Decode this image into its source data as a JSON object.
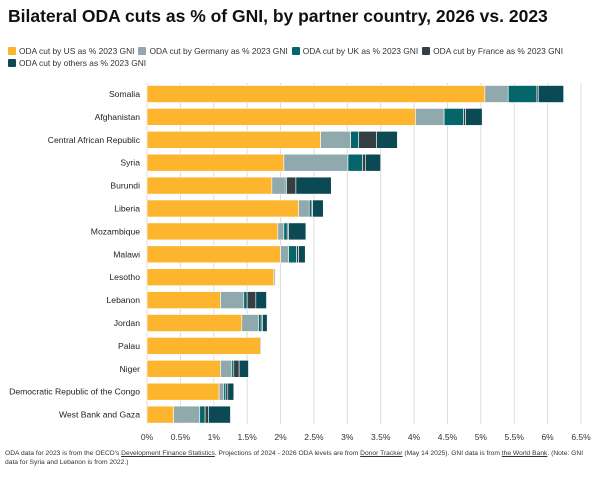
{
  "chart_data": {
    "type": "bar",
    "orientation": "horizontal",
    "stacked": true,
    "title": "Bilateral ODA cuts as % of GNI, by partner country, 2026 vs. 2023",
    "xlim": [
      0,
      6.5
    ],
    "xticks": [
      0,
      0.5,
      1,
      1.5,
      2,
      2.5,
      3,
      3.5,
      4,
      4.5,
      5,
      5.5,
      6,
      6.5
    ],
    "xtick_labels": [
      "0%",
      "0.5%",
      "1%",
      "1.5%",
      "2%",
      "2.5%",
      "3%",
      "3.5%",
      "4%",
      "4.5%",
      "5%",
      "5.5%",
      "6%",
      "6.5%"
    ],
    "grid": true,
    "legend_position": "top",
    "categories": [
      "Somalia",
      "Afghanistan",
      "Central African Republic",
      "Syria",
      "Burundi",
      "Liberia",
      "Mozambique",
      "Malawi",
      "Lesotho",
      "Lebanon",
      "Jordan",
      "Palau",
      "Niger",
      "Democratic Republic of the Congo",
      "West Bank and Gaza"
    ],
    "series": [
      {
        "name": "ODA cut by US as % 2023 GNI",
        "color": "#FDB52E",
        "values": [
          5.06,
          4.02,
          2.6,
          2.05,
          1.87,
          2.27,
          1.96,
          2.0,
          1.9,
          1.1,
          1.42,
          1.7,
          1.1,
          1.08,
          0.4
        ]
      },
      {
        "name": "ODA cut by Germany as % 2023 GNI",
        "color": "#8FA9AD",
        "values": [
          0.35,
          0.43,
          0.45,
          0.96,
          0.2,
          0.16,
          0.09,
          0.12,
          0.02,
          0.35,
          0.25,
          0.0,
          0.17,
          0.07,
          0.39
        ]
      },
      {
        "name": "ODA cut by UK as % 2023 GNI",
        "color": "#04666A",
        "values": [
          0.43,
          0.29,
          0.12,
          0.22,
          0.02,
          0.04,
          0.05,
          0.12,
          0.0,
          0.05,
          0.04,
          0.0,
          0.03,
          0.03,
          0.08
        ]
      },
      {
        "name": "ODA cut by France as % 2023 GNI",
        "color": "#353E43",
        "values": [
          0.02,
          0.03,
          0.27,
          0.04,
          0.14,
          0.01,
          0.02,
          0.03,
          0.0,
          0.13,
          0.02,
          0.0,
          0.08,
          0.03,
          0.05
        ]
      },
      {
        "name": "ODA cut by others as % 2023 GNI",
        "color": "#0B4A55",
        "values": [
          0.38,
          0.25,
          0.31,
          0.23,
          0.53,
          0.16,
          0.26,
          0.1,
          0.01,
          0.16,
          0.07,
          0.01,
          0.14,
          0.09,
          0.33
        ]
      }
    ]
  },
  "footnote": {
    "t1": "ODA data for 2023 is from the OECD's ",
    "l1": "Development Finance Statistics",
    "t2": ". Projections of 2024 - 2026 ODA levels are from ",
    "l2": "Donor Tracker",
    "t3": " (May 14 2025). GNI data is from ",
    "l3": "the World Bank",
    "t4": ". (Note: GNI data for Syria and Lebanon is from 2022.)"
  }
}
